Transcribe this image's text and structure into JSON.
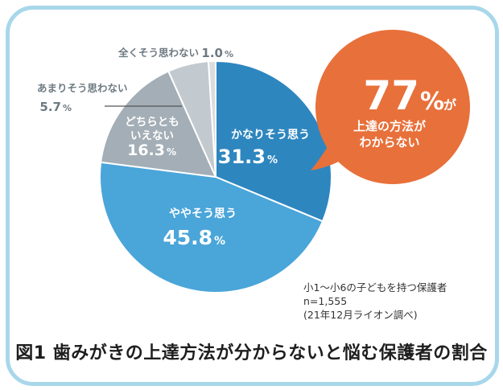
{
  "chart_data": {
    "type": "pie",
    "title": "図1 歯みがきの上達方法が分からないと悩む保護者の割合",
    "slices": [
      {
        "label": "かなりそう思う",
        "value": 31.3,
        "value_text": "31.3",
        "color": "#2e86bf"
      },
      {
        "label": "ややそう思う",
        "value": 45.8,
        "value_text": "45.8",
        "color": "#4aa5d9"
      },
      {
        "label_lines": [
          "どちらとも",
          "いえない"
        ],
        "value": 16.3,
        "value_text": "16.3",
        "color": "#a3aeb6"
      },
      {
        "label": "あまりそう思わない",
        "value": 5.7,
        "value_text": "5.7",
        "color": "#c3cacf"
      },
      {
        "label": "全くそう思わない",
        "value": 1.0,
        "value_text": "1.0",
        "color": "#d9dde0"
      }
    ],
    "unit": "%",
    "callout": {
      "value": "77",
      "unit": "%",
      "suffix": "が",
      "lines": [
        "上達の方法が",
        "わからない"
      ],
      "color": "#e8703a"
    },
    "notes": [
      "小1〜小6の子どもを持つ保護者",
      "n=1,555",
      "(21年12月ライオン調べ)"
    ]
  }
}
